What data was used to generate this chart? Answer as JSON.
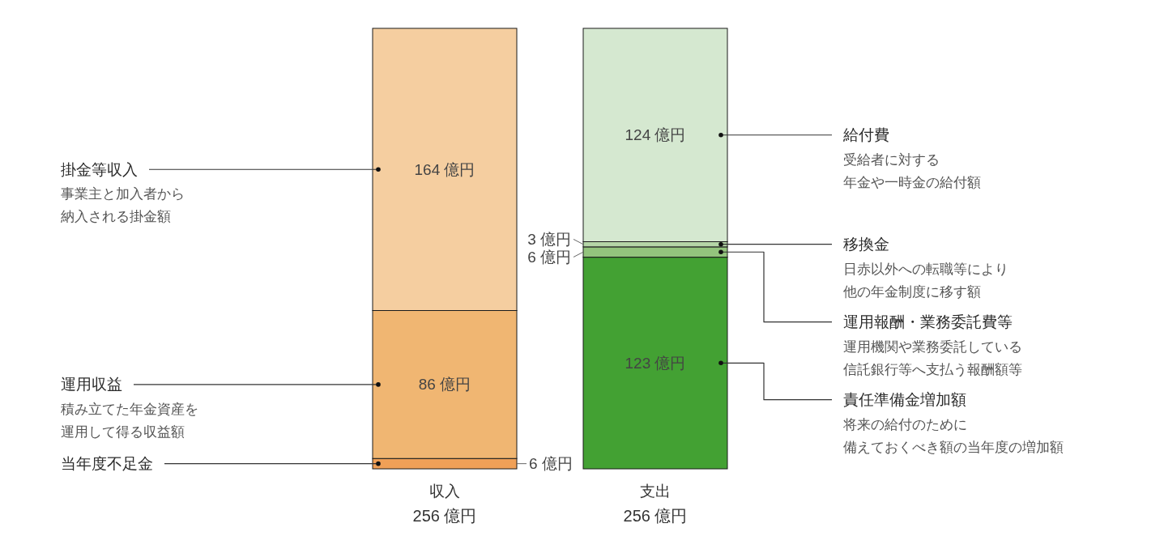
{
  "chart_data": {
    "type": "bar",
    "stacked": true,
    "categories": [
      "収入",
      "支出"
    ],
    "totals": [
      "256 億円",
      "256 億円"
    ],
    "series": [
      {
        "name": "当年度不足金",
        "color": "#f0a057",
        "values": [
          6,
          null
        ],
        "value_labels": [
          "6 億円",
          null
        ]
      },
      {
        "name": "運用収益",
        "color": "#f0b672",
        "values": [
          86,
          null
        ],
        "value_labels": [
          "86 億円",
          null
        ]
      },
      {
        "name": "掛金等収入",
        "color": "#f5cea0",
        "values": [
          164,
          null
        ],
        "value_labels": [
          "164 億円",
          null
        ]
      },
      {
        "name": "責任準備金増加額",
        "color": "#43a133",
        "values": [
          null,
          123
        ],
        "value_labels": [
          null,
          "123 億円"
        ]
      },
      {
        "name": "運用報酬・業務委託費等",
        "color": "#93c47d",
        "values": [
          null,
          6
        ],
        "value_labels": [
          null,
          "6 億円"
        ]
      },
      {
        "name": "移換金",
        "color": "#b5d6a7",
        "values": [
          null,
          3
        ],
        "value_labels": [
          null,
          "3 億円"
        ]
      },
      {
        "name": "給付費",
        "color": "#d5e8d0",
        "values": [
          null,
          124
        ],
        "value_labels": [
          null,
          "124 億円"
        ]
      }
    ],
    "annotations": [
      "受給者に対する年金や一時金の給付額",
      "日赤以外への転職等により他の年金制度に移す額",
      "運用機関や業務委託している信託銀行等へ支払う報酬額等",
      "将来の給付のために備えておくべき額の当年度の増加額",
      "事業主と加入者から納入される掛金額",
      "積み立てた年金資産を運用して得る収益額"
    ]
  }
}
